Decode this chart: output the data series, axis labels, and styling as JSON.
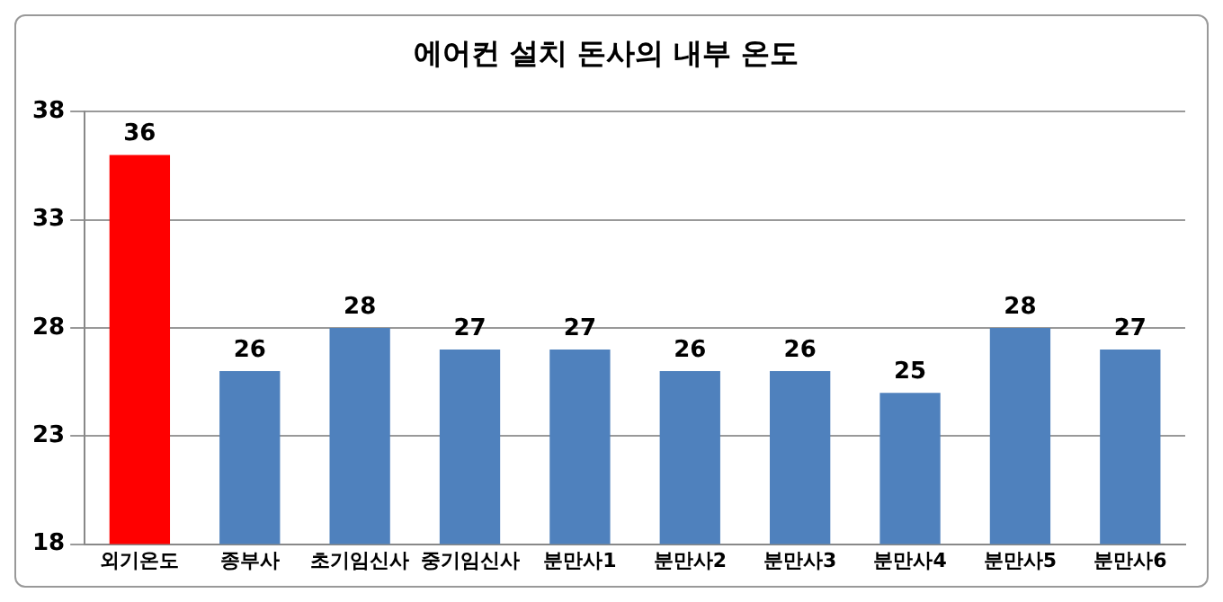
{
  "chart_data": {
    "type": "bar",
    "title": "에어컨 설치 돈사의 내부 온도",
    "categories": [
      "외기온도",
      "종부사",
      "초기임신사",
      "중기임신사",
      "분만사1",
      "분만사2",
      "분만사3",
      "분만사4",
      "분만사5",
      "분만사6"
    ],
    "values": [
      36,
      26,
      28,
      27,
      27,
      26,
      26,
      25,
      28,
      27
    ],
    "colors": [
      "#ff0000",
      "#4f81bd",
      "#4f81bd",
      "#4f81bd",
      "#4f81bd",
      "#4f81bd",
      "#4f81bd",
      "#4f81bd",
      "#4f81bd",
      "#4f81bd"
    ],
    "ylim": [
      18,
      38
    ],
    "yticks": [
      18,
      23,
      28,
      33,
      38
    ],
    "grid": "y",
    "data_labels": true
  }
}
